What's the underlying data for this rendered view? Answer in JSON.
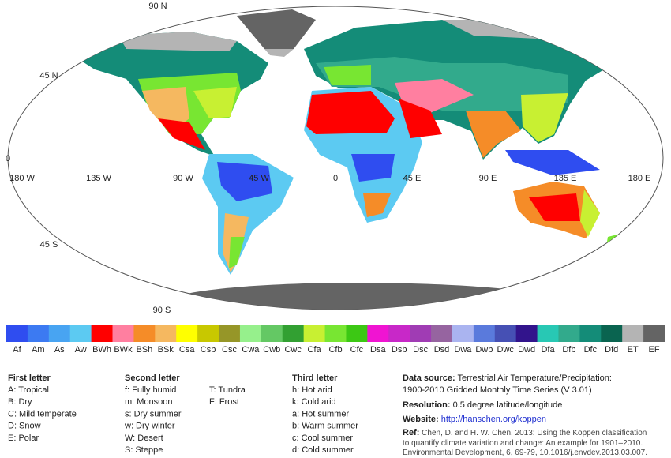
{
  "map": {
    "lat_labels": [
      "90 N",
      "45 N",
      "0",
      "45 S",
      "90 S"
    ],
    "lon_labels": [
      "180 W",
      "135 W",
      "90 W",
      "45 W",
      "0",
      "45 E",
      "90 E",
      "135 E",
      "180 E"
    ]
  },
  "legend": [
    {
      "code": "Af",
      "color": "#2f4df0"
    },
    {
      "code": "Am",
      "color": "#3c7af2"
    },
    {
      "code": "As",
      "color": "#48a4f2"
    },
    {
      "code": "Aw",
      "color": "#5ccaf2"
    },
    {
      "code": "BWh",
      "color": "#ff0000"
    },
    {
      "code": "BWk",
      "color": "#ff7fa0"
    },
    {
      "code": "BSh",
      "color": "#f58c28"
    },
    {
      "code": "BSk",
      "color": "#f5b860"
    },
    {
      "code": "Csa",
      "color": "#ffff00"
    },
    {
      "code": "Csb",
      "color": "#c8c800"
    },
    {
      "code": "Csc",
      "color": "#969628"
    },
    {
      "code": "Cwa",
      "color": "#96f08c"
    },
    {
      "code": "Cwb",
      "color": "#64c864"
    },
    {
      "code": "Cwc",
      "color": "#32a032"
    },
    {
      "code": "Cfa",
      "color": "#c8f032"
    },
    {
      "code": "Cfb",
      "color": "#78e632"
    },
    {
      "code": "Cfc",
      "color": "#3cc814"
    },
    {
      "code": "Dsa",
      "color": "#f014d2"
    },
    {
      "code": "Dsb",
      "color": "#c828c8"
    },
    {
      "code": "Dsc",
      "color": "#a03cb4"
    },
    {
      "code": "Dsd",
      "color": "#9664a0"
    },
    {
      "code": "Dwa",
      "color": "#aab4f0"
    },
    {
      "code": "Dwb",
      "color": "#5a7adc"
    },
    {
      "code": "Dwc",
      "color": "#4650b4"
    },
    {
      "code": "Dwd",
      "color": "#32148c"
    },
    {
      "code": "Dfa",
      "color": "#28c8b4"
    },
    {
      "code": "Dfb",
      "color": "#32aa8c"
    },
    {
      "code": "Dfc",
      "color": "#148c78"
    },
    {
      "code": "Dfd",
      "color": "#0a6450"
    },
    {
      "code": "ET",
      "color": "#b4b4b4"
    },
    {
      "code": "EF",
      "color": "#646464"
    }
  ],
  "key": {
    "first": {
      "title": "First letter",
      "items": [
        "A:  Tropical",
        "B:  Dry",
        "C:  Mild temperate",
        "D:  Snow",
        "E:  Polar"
      ]
    },
    "second": {
      "title": "Second letter",
      "items": [
        "f:   Fully humid",
        "m:  Monsoon",
        "s:  Dry summer",
        "w:  Dry winter",
        "W:  Desert",
        "S:  Steppe"
      ]
    },
    "second_extra": {
      "items": [
        "T:  Tundra",
        "F:  Frost"
      ]
    },
    "third": {
      "title": "Third letter",
      "items": [
        "h:  Hot arid",
        "k:  Cold arid",
        "a:  Hot summer",
        "b:  Warm summer",
        "c:  Cool summer",
        "d:  Cold summer"
      ]
    }
  },
  "info": {
    "data_source": {
      "label": "Data source:",
      "lines": [
        "Terrestrial Air Temperature/Precipitation:",
        "1900-2010 Gridded Monthly Time Series (V 3.01)"
      ]
    },
    "resolution": {
      "label": "Resolution:",
      "text": "0.5 degree latitude/longitude"
    },
    "website": {
      "label": "Website:",
      "text": "http://hanschen.org/koppen"
    },
    "ref": {
      "label": "Ref:",
      "lines": [
        "Chen, D. and H. W. Chen. 2013: Using the Köppen classification",
        "to quantify climate variation and change: An example for 1901–2010.",
        "Environmental Development, 6, 69-79, 10.1016/j.envdev.2013.03.007."
      ]
    }
  }
}
